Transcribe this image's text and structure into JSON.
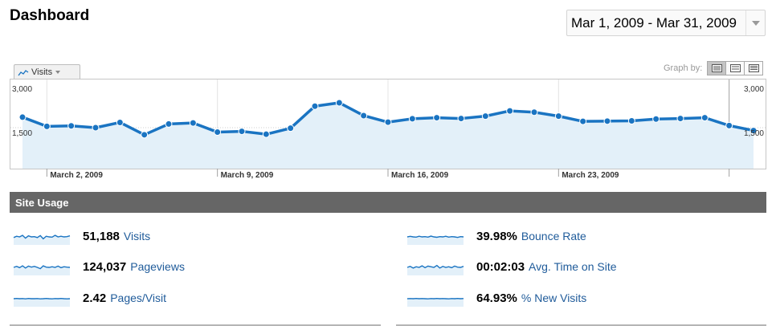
{
  "header": {
    "title": "Dashboard",
    "date_range": "Mar 1, 2009 - Mar 31, 2009"
  },
  "graph": {
    "metric_selector": "Visits",
    "graph_by_label": "Graph by:",
    "graph_by_options": [
      "day-view-icon",
      "week-view-icon",
      "month-view-icon"
    ],
    "accent_color": "#1a74c2",
    "fill_color": "#e3f0f9"
  },
  "chart_data": {
    "type": "area",
    "y_tick_labels": [
      "3,000",
      "1,500"
    ],
    "y_ticks": [
      3000,
      1500
    ],
    "ylim": [
      0,
      3000
    ],
    "x_labels": [
      "March 2, 2009",
      "March 9, 2009",
      "March 16, 2009",
      "March 23, 2009"
    ],
    "x_label_positions": [
      1,
      8,
      15,
      22
    ],
    "x": [
      "Mar 1",
      "Mar 2",
      "Mar 3",
      "Mar 4",
      "Mar 5",
      "Mar 6",
      "Mar 7",
      "Mar 8",
      "Mar 9",
      "Mar 10",
      "Mar 11",
      "Mar 12",
      "Mar 13",
      "Mar 14",
      "Mar 15",
      "Mar 16",
      "Mar 17",
      "Mar 18",
      "Mar 19",
      "Mar 20",
      "Mar 21",
      "Mar 22",
      "Mar 23",
      "Mar 24",
      "Mar 25",
      "Mar 26",
      "Mar 27",
      "Mar 28",
      "Mar 29",
      "Mar 30",
      "Mar 31"
    ],
    "series": [
      {
        "values": [
          1900,
          1550,
          1570,
          1500,
          1700,
          1230,
          1640,
          1680,
          1330,
          1360,
          1250,
          1480,
          2320,
          2450,
          1960,
          1710,
          1840,
          1880,
          1850,
          1940,
          2140,
          2090,
          1940,
          1740,
          1750,
          1760,
          1830,
          1850,
          1880,
          1580,
          1390
        ]
      }
    ],
    "grid": true
  },
  "site_usage": {
    "title": "Site Usage",
    "stats": [
      {
        "value": "51,188",
        "label": "Visits"
      },
      {
        "value": "124,037",
        "label": "Pageviews"
      },
      {
        "value": "2.42",
        "label": "Pages/Visit"
      },
      {
        "value": "39.98%",
        "label": "Bounce Rate"
      },
      {
        "value": "00:02:03",
        "label": "Avg. Time on Site"
      },
      {
        "value": "64.93%",
        "label": "% New Visits"
      }
    ],
    "sparklines": [
      [
        0.45,
        0.55,
        0.5,
        0.62,
        0.4,
        0.58,
        0.5,
        0.52,
        0.45,
        0.6,
        0.35,
        0.55,
        0.5,
        0.48,
        0.62,
        0.5,
        0.55,
        0.5,
        0.52,
        0.58
      ],
      [
        0.5,
        0.58,
        0.48,
        0.62,
        0.45,
        0.6,
        0.52,
        0.58,
        0.5,
        0.4,
        0.62,
        0.52,
        0.5,
        0.55,
        0.5,
        0.6,
        0.48,
        0.55,
        0.52,
        0.5
      ],
      [
        0.5,
        0.52,
        0.5,
        0.51,
        0.49,
        0.52,
        0.5,
        0.5,
        0.51,
        0.49,
        0.5,
        0.52,
        0.5,
        0.49,
        0.51,
        0.5,
        0.52,
        0.5,
        0.49,
        0.5
      ],
      [
        0.5,
        0.54,
        0.5,
        0.48,
        0.55,
        0.5,
        0.52,
        0.48,
        0.56,
        0.5,
        0.47,
        0.52,
        0.5,
        0.55,
        0.48,
        0.52,
        0.5,
        0.46,
        0.52,
        0.5
      ],
      [
        0.5,
        0.58,
        0.45,
        0.55,
        0.5,
        0.62,
        0.48,
        0.6,
        0.55,
        0.5,
        0.65,
        0.45,
        0.58,
        0.5,
        0.55,
        0.48,
        0.6,
        0.52,
        0.5,
        0.58
      ],
      [
        0.5,
        0.51,
        0.5,
        0.52,
        0.5,
        0.51,
        0.5,
        0.49,
        0.51,
        0.5,
        0.52,
        0.5,
        0.51,
        0.5,
        0.49,
        0.51,
        0.5,
        0.52,
        0.5,
        0.51
      ]
    ]
  }
}
